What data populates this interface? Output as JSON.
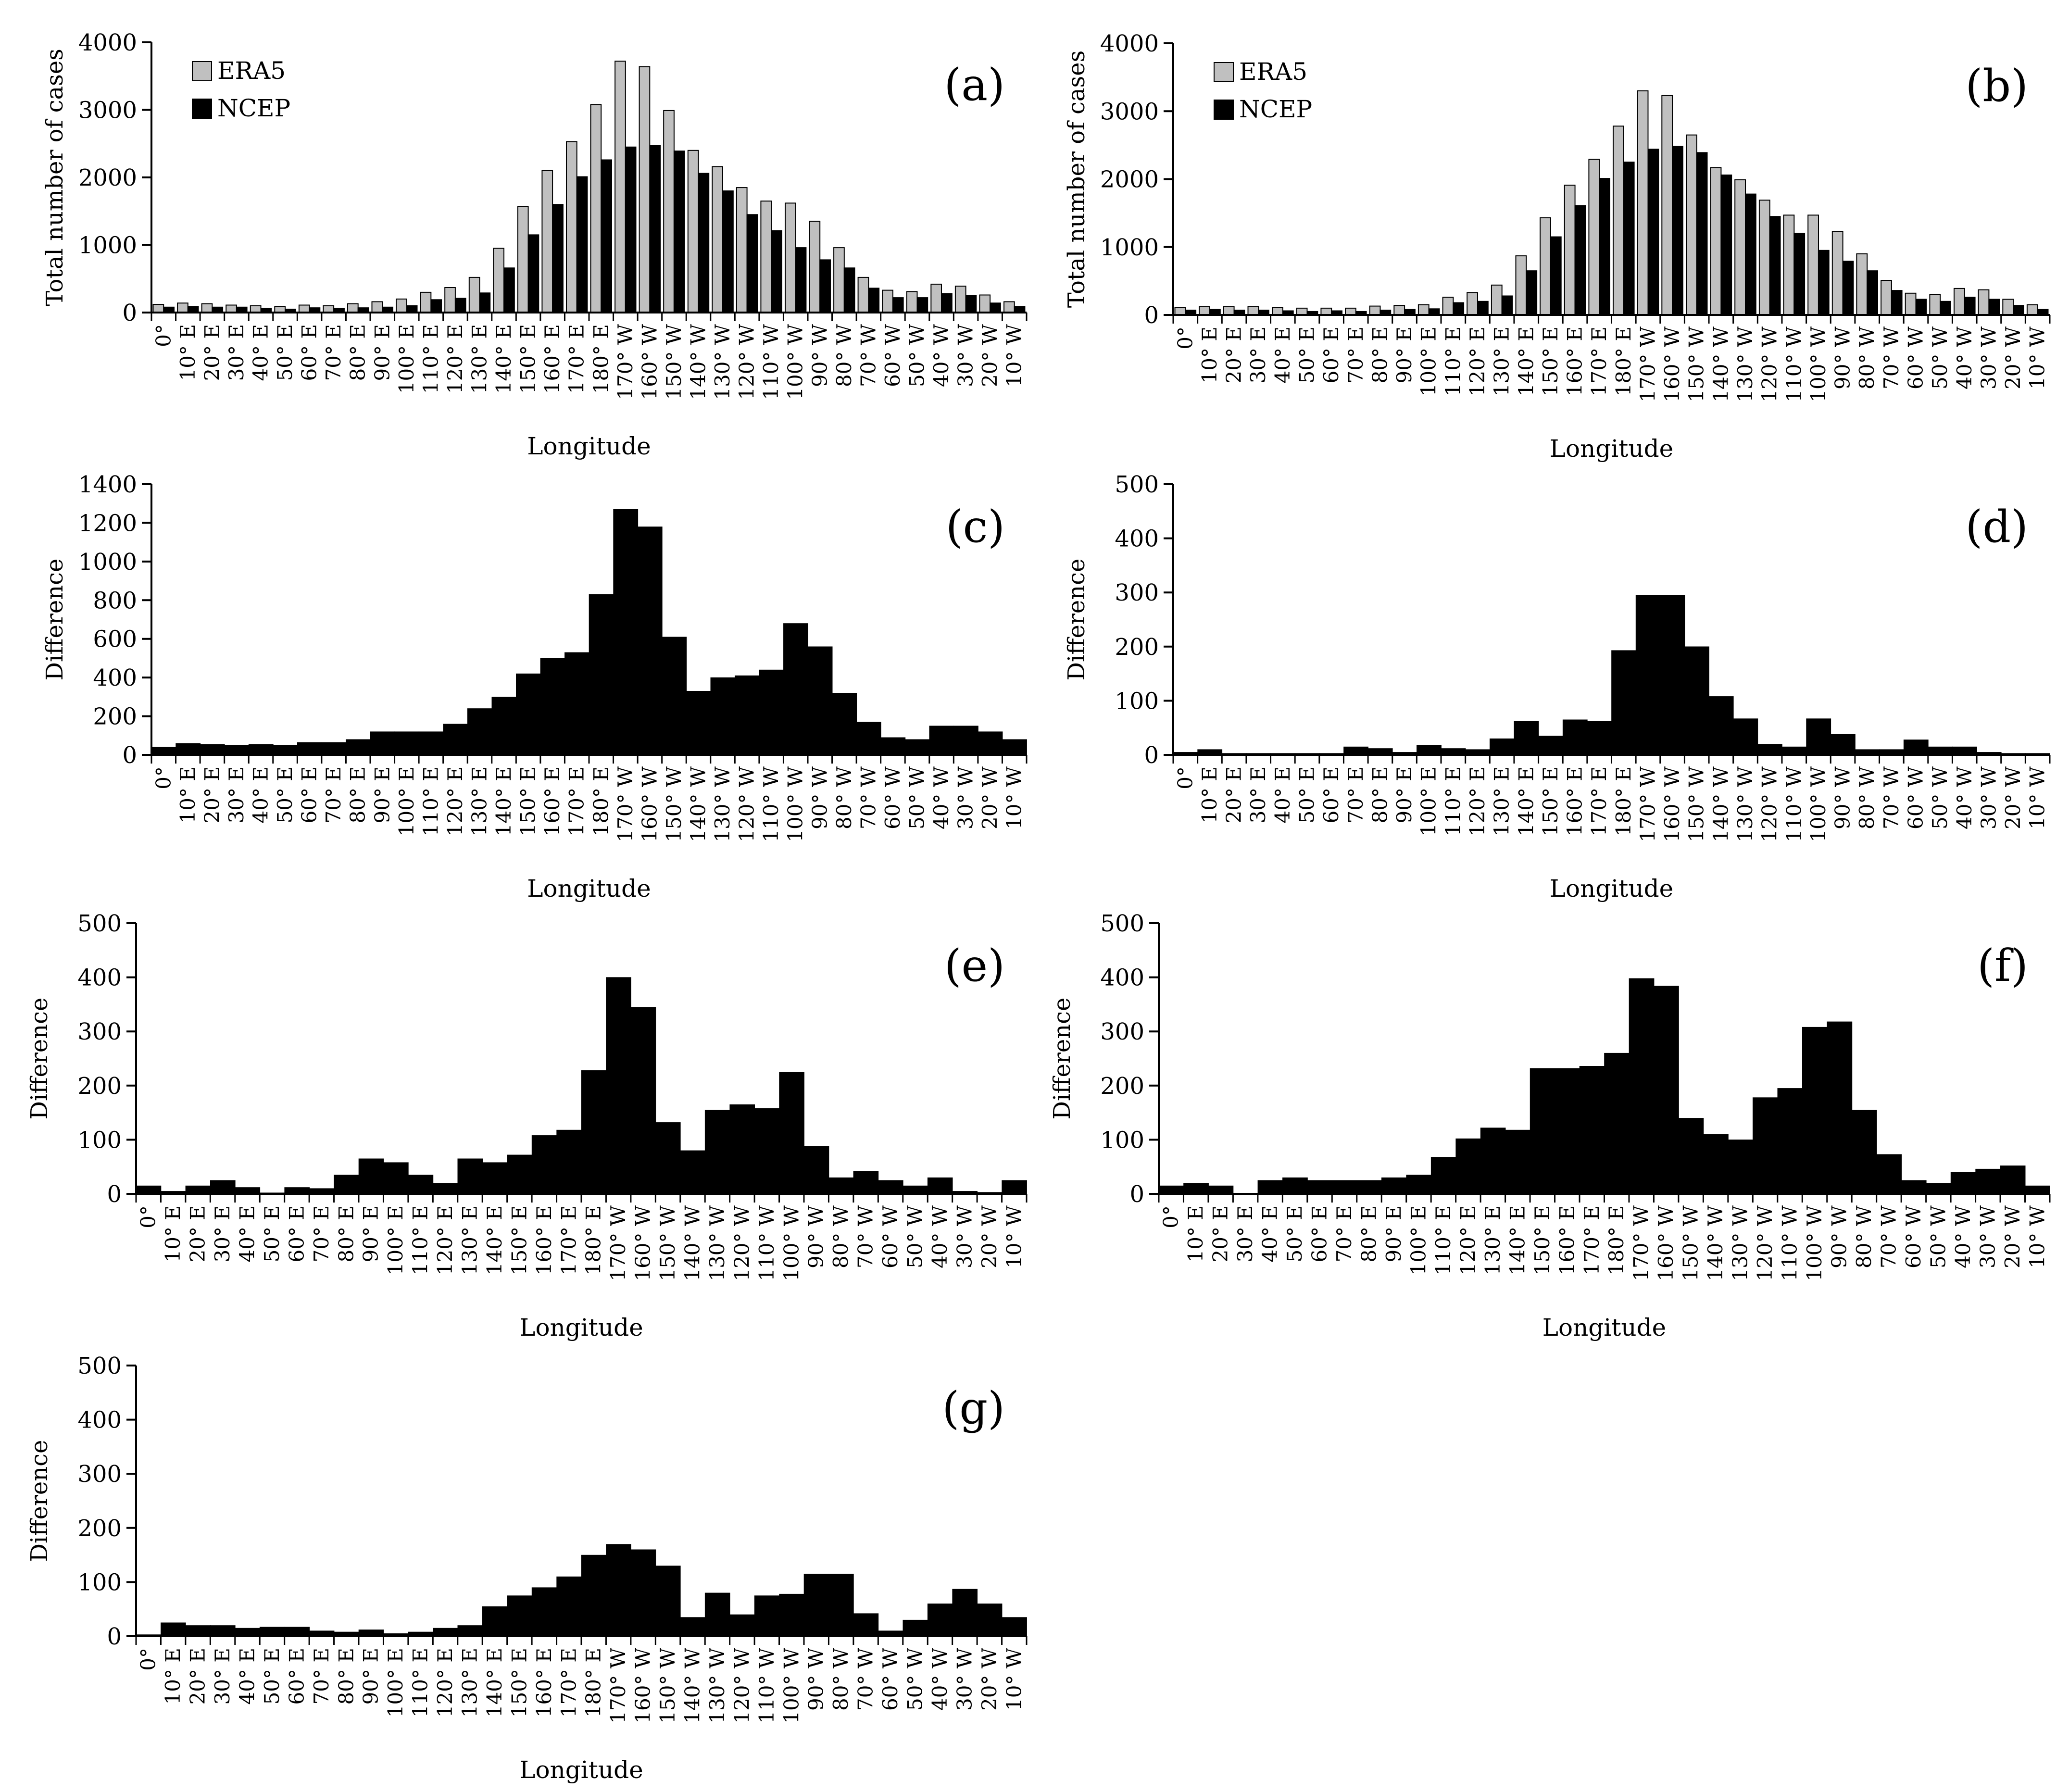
{
  "figure": {
    "chart_data": [
      {
        "panel_label": "(a)",
        "type": "bar",
        "xlabel": "Longitude",
        "ylabel": "Total number of cases",
        "ylim": [
          0,
          4000
        ],
        "yticks": [
          0,
          1000,
          2000,
          3000,
          4000
        ],
        "legend": {
          "placement": "top-left",
          "entries": [
            "ERA5",
            "NCEP"
          ]
        },
        "series": [
          {
            "name": "ERA5",
            "color": "#c0c0c0",
            "values": [
              120,
              140,
              130,
              110,
              100,
              90,
              110,
              100,
              130,
              160,
              200,
              300,
              370,
              520,
              950,
              1570,
              2100,
              2530,
              3080,
              3720,
              3640,
              2990,
              2400,
              2160,
              1850,
              1650,
              1620,
              1350,
              960,
              520,
              330,
              310,
              420,
              390,
              260,
              160
            ]
          },
          {
            "name": "NCEP",
            "color": "#000000",
            "values": [
              80,
              90,
              80,
              80,
              60,
              50,
              70,
              60,
              70,
              80,
              100,
              190,
              210,
              290,
              660,
              1150,
              1600,
              2010,
              2260,
              2450,
              2470,
              2390,
              2060,
              1800,
              1450,
              1210,
              960,
              780,
              660,
              360,
              220,
              220,
              280,
              250,
              140,
              90
            ]
          }
        ]
      },
      {
        "panel_label": "(b)",
        "type": "bar",
        "xlabel": "Longitude",
        "ylabel": "Total number of cases",
        "ylim": [
          0,
          4000
        ],
        "yticks": [
          0,
          1000,
          2000,
          3000,
          4000
        ],
        "legend": {
          "placement": "top-left",
          "entries": [
            "ERA5",
            "NCEP"
          ]
        },
        "series": [
          {
            "name": "ERA5",
            "color": "#c0c0c0",
            "values": [
              110,
              120,
              120,
              120,
              110,
              100,
              100,
              100,
              130,
              140,
              150,
              260,
              330,
              440,
              870,
              1430,
              1910,
              2290,
              2780,
              3300,
              3230,
              2650,
              2170,
              1990,
              1690,
              1470,
              1470,
              1230,
              900,
              510,
              320,
              300,
              390,
              370,
              230,
              150
            ]
          },
          {
            "name": "NCEP",
            "color": "#000000",
            "values": [
              70,
              80,
              70,
              70,
              60,
              50,
              60,
              50,
              70,
              80,
              90,
              180,
              200,
              280,
              650,
              1150,
              1610,
              2010,
              2250,
              2440,
              2480,
              2390,
              2060,
              1780,
              1450,
              1200,
              950,
              790,
              650,
              360,
              230,
              200,
              260,
              230,
              140,
              80
            ]
          }
        ]
      },
      {
        "panel_label": "(c)",
        "type": "bar",
        "xlabel": "Longitude",
        "ylabel": "Difference",
        "color": "#000000",
        "ylim": [
          0,
          1400
        ],
        "yticks": [
          0,
          200,
          400,
          600,
          800,
          1000,
          1200,
          1400
        ],
        "values": [
          40,
          60,
          55,
          50,
          55,
          50,
          65,
          65,
          80,
          120,
          120,
          120,
          160,
          240,
          300,
          420,
          500,
          530,
          830,
          1270,
          1180,
          610,
          330,
          400,
          410,
          440,
          680,
          560,
          320,
          170,
          90,
          80,
          150,
          150,
          120,
          80
        ]
      },
      {
        "panel_label": "(d)",
        "type": "bar",
        "xlabel": "Longitude",
        "ylabel": "Difference",
        "color": "#000000",
        "ylim": [
          0,
          500
        ],
        "yticks": [
          0,
          100,
          200,
          300,
          400,
          500
        ],
        "values": [
          5,
          10,
          3,
          3,
          3,
          3,
          3,
          15,
          12,
          5,
          18,
          12,
          10,
          30,
          62,
          35,
          65,
          62,
          193,
          295,
          295,
          200,
          108,
          67,
          20,
          15,
          67,
          38,
          10,
          10,
          28,
          15,
          15,
          5,
          3,
          3
        ]
      },
      {
        "panel_label": "(e)",
        "type": "bar",
        "xlabel": "Longitude",
        "ylabel": "Difference",
        "color": "#000000",
        "ylim": [
          0,
          500
        ],
        "yticks": [
          0,
          100,
          200,
          300,
          400,
          500
        ],
        "values": [
          15,
          5,
          15,
          25,
          12,
          2,
          12,
          10,
          35,
          65,
          58,
          35,
          20,
          65,
          58,
          72,
          108,
          118,
          228,
          400,
          345,
          132,
          80,
          155,
          165,
          158,
          225,
          88,
          30,
          42,
          25,
          15,
          30,
          5,
          3,
          25
        ]
      },
      {
        "panel_label": "(f)",
        "type": "bar",
        "xlabel": "Longitude",
        "ylabel": "Difference",
        "color": "#000000",
        "ylim": [
          0,
          500
        ],
        "yticks": [
          0,
          100,
          200,
          300,
          400,
          500
        ],
        "values": [
          15,
          20,
          15,
          0,
          25,
          30,
          25,
          25,
          25,
          30,
          35,
          68,
          102,
          122,
          118,
          232,
          232,
          236,
          260,
          398,
          384,
          140,
          110,
          100,
          178,
          195,
          308,
          318,
          155,
          73,
          25,
          20,
          40,
          46,
          52,
          15
        ]
      },
      {
        "panel_label": "(g)",
        "type": "bar",
        "xlabel": "Longitude",
        "ylabel": "Difference",
        "color": "#000000",
        "ylim": [
          0,
          500
        ],
        "yticks": [
          0,
          100,
          200,
          300,
          400,
          500
        ],
        "values": [
          3,
          25,
          20,
          20,
          15,
          17,
          17,
          10,
          8,
          12,
          5,
          8,
          15,
          20,
          55,
          75,
          90,
          110,
          150,
          170,
          160,
          130,
          35,
          80,
          40,
          75,
          78,
          115,
          115,
          42,
          10,
          30,
          60,
          87,
          60,
          35
        ]
      }
    ],
    "categories": [
      "0°",
      "10° E",
      "20° E",
      "30° E",
      "40° E",
      "50° E",
      "60° E",
      "70° E",
      "80° E",
      "90° E",
      "100° E",
      "110° E",
      "120° E",
      "130° E",
      "140° E",
      "150° E",
      "160° E",
      "170° E",
      "180° E",
      "170° W",
      "160° W",
      "150° W",
      "140° W",
      "130° W",
      "120° W",
      "110° W",
      "100° W",
      "90° W",
      "80° W",
      "70° W",
      "60° W",
      "50° W",
      "40° W",
      "30° W",
      "20° W",
      "10° W"
    ]
  }
}
